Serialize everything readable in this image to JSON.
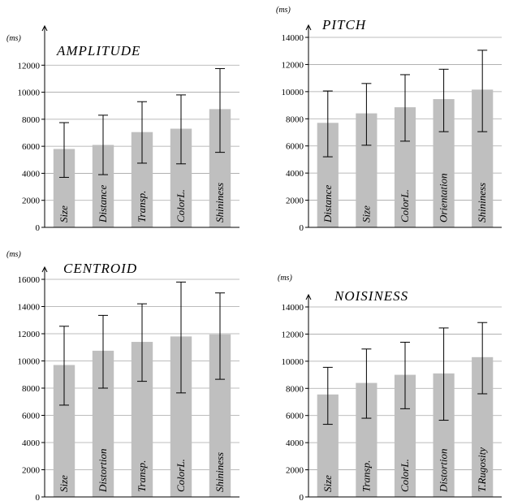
{
  "chart_data": [
    {
      "type": "bar",
      "title": "AMPLITUDE",
      "unit": "(ms)",
      "categories": [
        "Size",
        "Distance",
        "Transp.",
        "ColorL.",
        "Shininess"
      ],
      "values": [
        5800,
        6100,
        7050,
        7300,
        8750
      ],
      "error_low": [
        3700,
        3900,
        4750,
        4700,
        5550
      ],
      "error_high": [
        7750,
        8300,
        9300,
        9800,
        11750
      ],
      "ylim": [
        0,
        14000
      ],
      "yticks": [
        "0",
        "2000",
        "4000",
        "6000",
        "8000",
        "10000",
        "12000"
      ],
      "grid": true
    },
    {
      "type": "bar",
      "title": "PITCH",
      "unit": "(ms)",
      "categories": [
        "Distance",
        "Size",
        "ColorL.",
        "Orientation",
        "Shininess"
      ],
      "values": [
        7700,
        8400,
        8850,
        9450,
        10150
      ],
      "error_low": [
        5200,
        6050,
        6350,
        7050,
        7050
      ],
      "error_high": [
        10050,
        10600,
        11250,
        11650,
        13050
      ],
      "ylim": [
        0,
        14000
      ],
      "yticks": [
        "0",
        "2000",
        "4000",
        "6000",
        "8000",
        "10000",
        "12000",
        "14000"
      ],
      "grid": true
    },
    {
      "type": "bar",
      "title": "CENTROID",
      "unit": "(ms)",
      "categories": [
        "Size",
        "Distortion",
        "Transp.",
        "ColorL.",
        "Shininess"
      ],
      "values": [
        9700,
        10750,
        11400,
        11800,
        11950
      ],
      "error_low": [
        6750,
        8000,
        8500,
        7650,
        8650
      ],
      "error_high": [
        12550,
        13350,
        14200,
        15800,
        15000
      ],
      "ylim": [
        0,
        16000
      ],
      "yticks": [
        "0",
        "2000",
        "4000",
        "6000",
        "8000",
        "10000",
        "12000",
        "14000",
        "16000"
      ],
      "grid": true
    },
    {
      "type": "bar",
      "title": "NOISINESS",
      "unit": "(ms)",
      "categories": [
        "Size",
        "Transp.",
        "ColorL.",
        "Distortion",
        "T.Rugosity"
      ],
      "values": [
        7550,
        8400,
        9000,
        9100,
        10300
      ],
      "error_low": [
        5350,
        5800,
        6500,
        5650,
        7600
      ],
      "error_high": [
        9550,
        10900,
        11400,
        12450,
        12850
      ],
      "ylim": [
        0,
        14000
      ],
      "yticks": [
        "0",
        "2000",
        "4000",
        "6000",
        "8000",
        "10000",
        "12000",
        "14000"
      ],
      "grid": true
    }
  ],
  "colors": {
    "bar": "#bfbfbf",
    "grid": "#a6a6a6",
    "axis": "#000000",
    "error": "#000000"
  }
}
